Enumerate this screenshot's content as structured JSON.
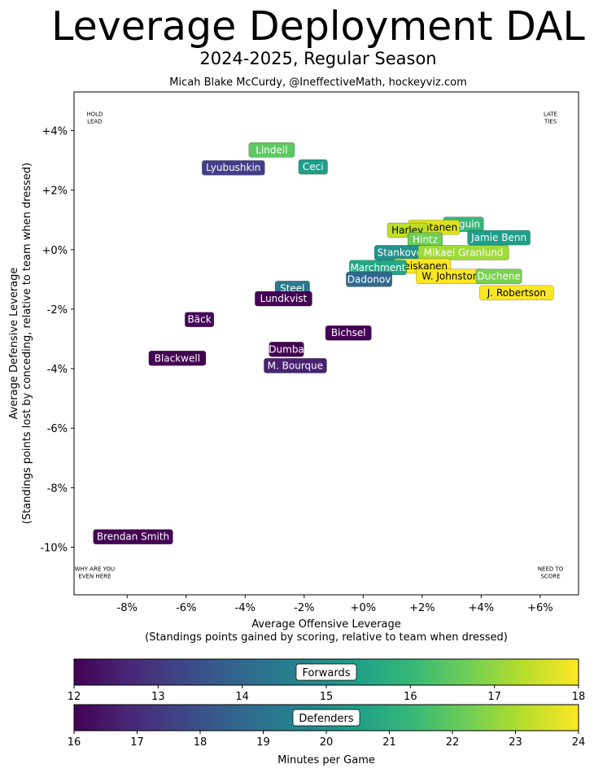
{
  "header": {
    "title": "Leverage Deployment DAL",
    "subtitle": "2024-2025, Regular Season",
    "credit": "Micah Blake McCurdy, @IneffectiveMath, hockeyviz.com"
  },
  "chart_data": {
    "type": "scatter",
    "xlabel": "Average Offensive Leverage",
    "xlabel2": "(Standings points gained by scoring, relative to team when dressed)",
    "ylabel": "Average Defensive Leverage",
    "ylabel2": "(Standings points lost by conceding, relative to team when dressed)",
    "xlim": [
      -9.8,
      7.3
    ],
    "ylim": [
      -11.6,
      5.3
    ],
    "xticks": [
      {
        "v": -8,
        "label": "-8%"
      },
      {
        "v": -6,
        "label": "-6%"
      },
      {
        "v": -4,
        "label": "-4%"
      },
      {
        "v": -2,
        "label": "-2%"
      },
      {
        "v": 0,
        "label": "+0%"
      },
      {
        "v": 2,
        "label": "+2%"
      },
      {
        "v": 4,
        "label": "+4%"
      },
      {
        "v": 6,
        "label": "+6%"
      }
    ],
    "yticks": [
      {
        "v": 4,
        "label": "+4%"
      },
      {
        "v": 2,
        "label": "+2%"
      },
      {
        "v": 0,
        "label": "+0%"
      },
      {
        "v": -2,
        "label": "-2%"
      },
      {
        "v": -4,
        "label": "-4%"
      },
      {
        "v": -6,
        "label": "-6%"
      },
      {
        "v": -8,
        "label": "-8%"
      },
      {
        "v": -10,
        "label": "-10%"
      }
    ],
    "corners": [
      {
        "pos": "top-left",
        "x": -9.1,
        "y": 4.5,
        "lines": [
          "HOLD",
          "LEAD"
        ]
      },
      {
        "pos": "top-right",
        "x": 6.35,
        "y": 4.5,
        "lines": [
          "LATE",
          "TIES"
        ]
      },
      {
        "pos": "bottom-left",
        "x": -9.1,
        "y": -10.8,
        "lines": [
          "WHY ARE YOU",
          "EVEN HERE"
        ]
      },
      {
        "pos": "bottom-right",
        "x": 6.35,
        "y": -10.8,
        "lines": [
          "NEED TO",
          "SCORE"
        ]
      }
    ],
    "points": [
      {
        "name": "Lindell",
        "x": -3.1,
        "y": 3.35,
        "color": "#5ec962",
        "text": "#ffffff"
      },
      {
        "name": "Lyubushkin",
        "x": -4.4,
        "y": 2.75,
        "color": "#433e85",
        "text": "#ffffff"
      },
      {
        "name": "Ceci",
        "x": -1.7,
        "y": 2.78,
        "color": "#1f9e89",
        "text": "#ffffff"
      },
      {
        "name": "Seguin",
        "x": 3.4,
        "y": 0.85,
        "color": "#35b779",
        "text": "#ffffff"
      },
      {
        "name": "Rantanen",
        "x": 2.4,
        "y": 0.75,
        "color": "#dde318",
        "text": "#000000"
      },
      {
        "name": "Harley",
        "x": 1.5,
        "y": 0.65,
        "color": "#bddf26",
        "text": "#000000"
      },
      {
        "name": "Jamie Benn",
        "x": 4.6,
        "y": 0.4,
        "color": "#1f9e89",
        "text": "#ffffff"
      },
      {
        "name": "Hintz",
        "x": 2.1,
        "y": 0.33,
        "color": "#6ece58",
        "text": "#ffffff"
      },
      {
        "name": "Stankoven",
        "x": 1.35,
        "y": -0.1,
        "color": "#21918c",
        "text": "#ffffff"
      },
      {
        "name": "Mikael Granlund",
        "x": 3.4,
        "y": -0.1,
        "color": "#a0da39",
        "text": "#ffffff"
      },
      {
        "name": "Heiskanen",
        "x": 2.0,
        "y": -0.55,
        "color": "#fde725",
        "text": "#000000"
      },
      {
        "name": "Marchment",
        "x": 0.5,
        "y": -0.6,
        "color": "#22a884",
        "text": "#ffffff"
      },
      {
        "name": "W. Johnston",
        "x": 2.95,
        "y": -0.9,
        "color": "#fde725",
        "text": "#000000"
      },
      {
        "name": "Duchene",
        "x": 4.6,
        "y": -0.9,
        "color": "#7ad151",
        "text": "#ffffff"
      },
      {
        "name": "Dadonov",
        "x": 0.2,
        "y": -1.0,
        "color": "#31688e",
        "text": "#ffffff"
      },
      {
        "name": "J. Robertson",
        "x": 5.2,
        "y": -1.45,
        "color": "#fde725",
        "text": "#000000"
      },
      {
        "name": "Steel",
        "x": -2.4,
        "y": -1.3,
        "color": "#2a788e",
        "text": "#ffffff"
      },
      {
        "name": "Lundkvist",
        "x": -2.7,
        "y": -1.65,
        "color": "#440154",
        "text": "#ffffff"
      },
      {
        "name": "Bäck",
        "x": -5.55,
        "y": -2.35,
        "color": "#46085c",
        "text": "#ffffff"
      },
      {
        "name": "Bichsel",
        "x": -0.5,
        "y": -2.8,
        "color": "#440154",
        "text": "#ffffff"
      },
      {
        "name": "Dumba",
        "x": -2.6,
        "y": -3.35,
        "color": "#440154",
        "text": "#ffffff"
      },
      {
        "name": "M. Bourque",
        "x": -2.3,
        "y": -3.9,
        "color": "#482173",
        "text": "#ffffff"
      },
      {
        "name": "Blackwell",
        "x": -6.3,
        "y": -3.65,
        "color": "#440154",
        "text": "#ffffff"
      },
      {
        "name": "Brendan Smith",
        "x": -7.8,
        "y": -9.65,
        "color": "#440154",
        "text": "#ffffff"
      }
    ],
    "colorbars": [
      {
        "label": "Forwards",
        "ticks": [
          "12",
          "13",
          "14",
          "15",
          "16",
          "17",
          "18"
        ]
      },
      {
        "label": "Defenders",
        "ticks": [
          "16",
          "17",
          "18",
          "19",
          "20",
          "21",
          "22",
          "23",
          "24"
        ]
      }
    ],
    "colorbar_xlabel": "Minutes per Game",
    "colormap": [
      "#440154",
      "#482878",
      "#3e4989",
      "#31688e",
      "#26828e",
      "#1f9e89",
      "#35b779",
      "#6ece58",
      "#b5de2b",
      "#fde725"
    ]
  }
}
